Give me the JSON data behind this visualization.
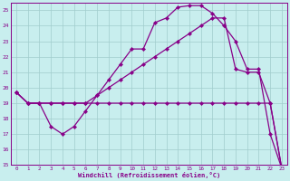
{
  "xlabel": "Windchill (Refroidissement éolien,°C)",
  "xlim": [
    -0.5,
    23.5
  ],
  "ylim": [
    15,
    25.5
  ],
  "xticks": [
    0,
    1,
    2,
    3,
    4,
    5,
    6,
    7,
    8,
    9,
    10,
    11,
    12,
    13,
    14,
    15,
    16,
    17,
    18,
    19,
    20,
    21,
    22,
    23
  ],
  "yticks": [
    15,
    16,
    17,
    18,
    19,
    20,
    21,
    22,
    23,
    24,
    25
  ],
  "background_color": "#c8eeee",
  "grid_color": "#a0cccc",
  "line_color": "#880088",
  "curve1_x": [
    0,
    1,
    2,
    3,
    4,
    5,
    6,
    7,
    8,
    9,
    10,
    11,
    12,
    13,
    14,
    15,
    16,
    17,
    18,
    19,
    20,
    21,
    22,
    23
  ],
  "curve1_y": [
    19.7,
    19.0,
    19.0,
    19.0,
    19.0,
    19.0,
    19.0,
    19.0,
    19.0,
    19.0,
    19.0,
    19.0,
    19.0,
    19.0,
    19.0,
    19.0,
    19.0,
    19.0,
    19.0,
    19.0,
    19.0,
    19.0,
    19.0,
    14.8
  ],
  "curve2_x": [
    0,
    1,
    2,
    3,
    4,
    5,
    6,
    7,
    8,
    9,
    10,
    11,
    12,
    13,
    14,
    15,
    16,
    17,
    18,
    19,
    20,
    21,
    22,
    23
  ],
  "curve2_y": [
    19.7,
    19.0,
    19.0,
    19.0,
    19.0,
    19.0,
    19.0,
    19.5,
    20.0,
    20.5,
    21.0,
    21.5,
    22.0,
    22.5,
    23.0,
    23.5,
    24.0,
    24.5,
    24.5,
    21.2,
    21.0,
    21.0,
    19.0,
    14.8
  ],
  "curve3_x": [
    0,
    1,
    2,
    3,
    4,
    5,
    6,
    7,
    8,
    9,
    10,
    11,
    12,
    13,
    14,
    15,
    16,
    17,
    18,
    19,
    20,
    21,
    22,
    23
  ],
  "curve3_y": [
    19.7,
    19.0,
    19.0,
    17.5,
    17.0,
    17.5,
    18.5,
    19.5,
    20.5,
    21.5,
    22.5,
    22.5,
    24.2,
    24.5,
    25.2,
    25.3,
    25.3,
    24.8,
    24.0,
    23.0,
    21.2,
    21.2,
    17.0,
    14.8
  ]
}
